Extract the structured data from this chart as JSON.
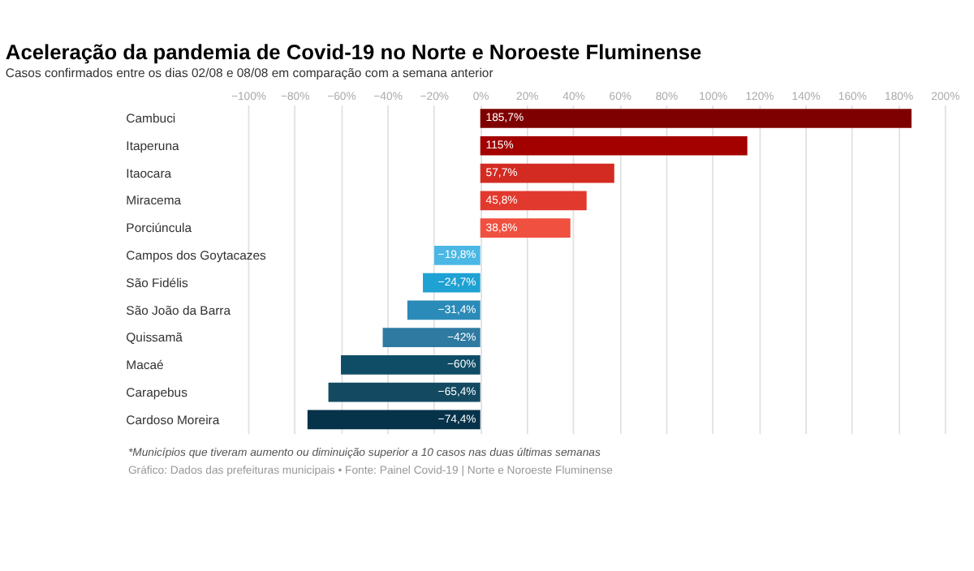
{
  "chart_data": {
    "type": "bar",
    "orientation": "horizontal",
    "title": "Aceleração da pandemia de Covid-19 no Norte e Noroeste Fluminense",
    "subtitle": "Casos confirmados entre os dias 02/08 e 08/08 em comparação com a semana anterior",
    "categories": [
      "Cambuci",
      "Itaperuna",
      "Itaocara",
      "Miracema",
      "Porciúncula",
      "Campos dos Goytacazes",
      "São Fidélis",
      "São João da Barra",
      "Quissamã",
      "Macaé",
      "Carapebus",
      "Cardoso Moreira"
    ],
    "values": [
      185.7,
      115,
      57.7,
      45.8,
      38.8,
      -19.8,
      -24.7,
      -31.4,
      -42,
      -60,
      -65.4,
      -74.4
    ],
    "value_labels": [
      "185,7%",
      "115%",
      "57,7%",
      "45,8%",
      "38,8%",
      "−19,8%",
      "−24,7%",
      "−31,4%",
      "−42%",
      "−60%",
      "−65,4%",
      "−74,4%"
    ],
    "colors": [
      "#7f0000",
      "#a30000",
      "#d32b22",
      "#e2392e",
      "#f0503f",
      "#4ab7e5",
      "#1ea1d3",
      "#2b8bb8",
      "#2e7aa1",
      "#0f4d66",
      "#134a61",
      "#06324a"
    ],
    "xlim": [
      -100,
      200
    ],
    "xticks": [
      {
        "value": -100,
        "label": "−100%"
      },
      {
        "value": -80,
        "label": "−80%"
      },
      {
        "value": -60,
        "label": "−60%"
      },
      {
        "value": -40,
        "label": "−40%"
      },
      {
        "value": -20,
        "label": "−20%"
      },
      {
        "value": 0,
        "label": "0%"
      },
      {
        "value": 20,
        "label": "20%"
      },
      {
        "value": 40,
        "label": "40%"
      },
      {
        "value": 60,
        "label": "60%"
      },
      {
        "value": 80,
        "label": "80%"
      },
      {
        "value": 100,
        "label": "100%"
      },
      {
        "value": 120,
        "label": "120%"
      },
      {
        "value": 140,
        "label": "140%"
      },
      {
        "value": 160,
        "label": "160%"
      },
      {
        "value": 180,
        "label": "180%"
      },
      {
        "value": 200,
        "label": "200%"
      }
    ],
    "grid": "x",
    "annotations": [
      "*Municípios que tiveram aumento ou diminuição superior a 10 casos nas duas últimas semanas",
      "Gráfico: Dados das prefeituras municipais • Fonte: Painel Covid-19 | Norte e Noroeste Fluminense"
    ]
  }
}
